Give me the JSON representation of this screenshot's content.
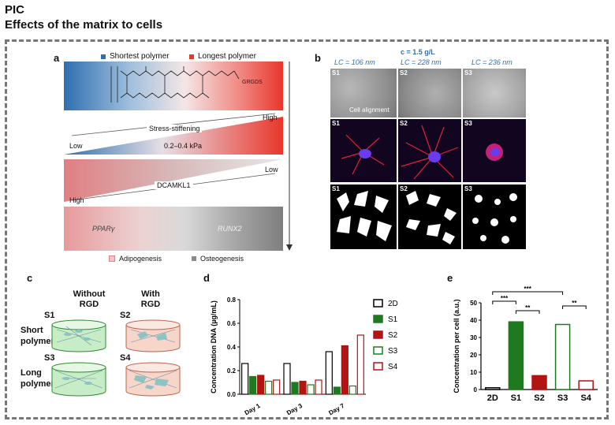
{
  "header": {
    "line1": "PIC",
    "line2": "Effects of the matrix to cells"
  },
  "colors": {
    "blue": "#2f6fb0",
    "red": "#e8362b",
    "s1": "#1f7a1f",
    "s2": "#b31313",
    "frame": "#777777"
  },
  "panel_a": {
    "letter": "a",
    "shortest_label": "Shortest polymer",
    "longest_label": "Longest polymer",
    "molecule_label": "GRGDS",
    "stress_label": "Stress-stiffening",
    "stress_low": "Low",
    "stress_high": "High",
    "stress_range": "0.2–0.4 kPa",
    "dcamkl1_label": "DCAMKL1",
    "dcamkl1_high": "High",
    "dcamkl1_low": "Low",
    "ppar_label": "PPARγ",
    "runx2_label": "RUNX2",
    "adipo_label": "Adipogenesis",
    "osteo_label": "Osteogenesis"
  },
  "panel_b": {
    "letter": "b",
    "conc_label": "c = 1.5 g/L",
    "lc_labels": [
      "LC = 106 nm",
      "LC = 228 nm",
      "LC = 236 nm"
    ],
    "row_tags": [
      "S1",
      "S2",
      "S3"
    ],
    "alignment_label": "Cell alignment"
  },
  "panel_c": {
    "letter": "c",
    "col1": "Without RGD",
    "col2": "With RGD",
    "row1": "Short polymer",
    "row2": "Long polymer",
    "tags": [
      "S1",
      "S2",
      "S3",
      "S4"
    ]
  },
  "panel_d": {
    "letter": "d",
    "chart_data": {
      "type": "bar",
      "ylabel": "Concentration DNA (µg/mL)",
      "ylim": [
        0,
        0.8
      ],
      "yticks": [
        "0.0",
        "0.2",
        "0.4",
        "0.6",
        "0.8"
      ],
      "categories": [
        "Day 1",
        "Day 3",
        "Day 7"
      ],
      "series": [
        {
          "name": "2D",
          "values": [
            0.26,
            0.26,
            0.36
          ]
        },
        {
          "name": "S1",
          "values": [
            0.15,
            0.1,
            0.06
          ]
        },
        {
          "name": "S2",
          "values": [
            0.16,
            0.11,
            0.41
          ]
        },
        {
          "name": "S3",
          "values": [
            0.11,
            0.08,
            0.07
          ]
        },
        {
          "name": "S4",
          "values": [
            0.12,
            0.12,
            0.5
          ]
        }
      ]
    }
  },
  "panel_e": {
    "letter": "e",
    "chart_data": {
      "type": "bar",
      "ylabel": "Concentration per cell (a.u.)",
      "ylim": [
        0,
        50
      ],
      "yticks": [
        "0",
        "10",
        "20",
        "30",
        "40",
        "50"
      ],
      "categories": [
        "2D",
        "S1",
        "S2",
        "S3",
        "S4"
      ],
      "values": [
        1,
        39,
        8,
        37.5,
        5
      ],
      "significance": [
        "***",
        "**",
        "***",
        "**"
      ]
    }
  }
}
